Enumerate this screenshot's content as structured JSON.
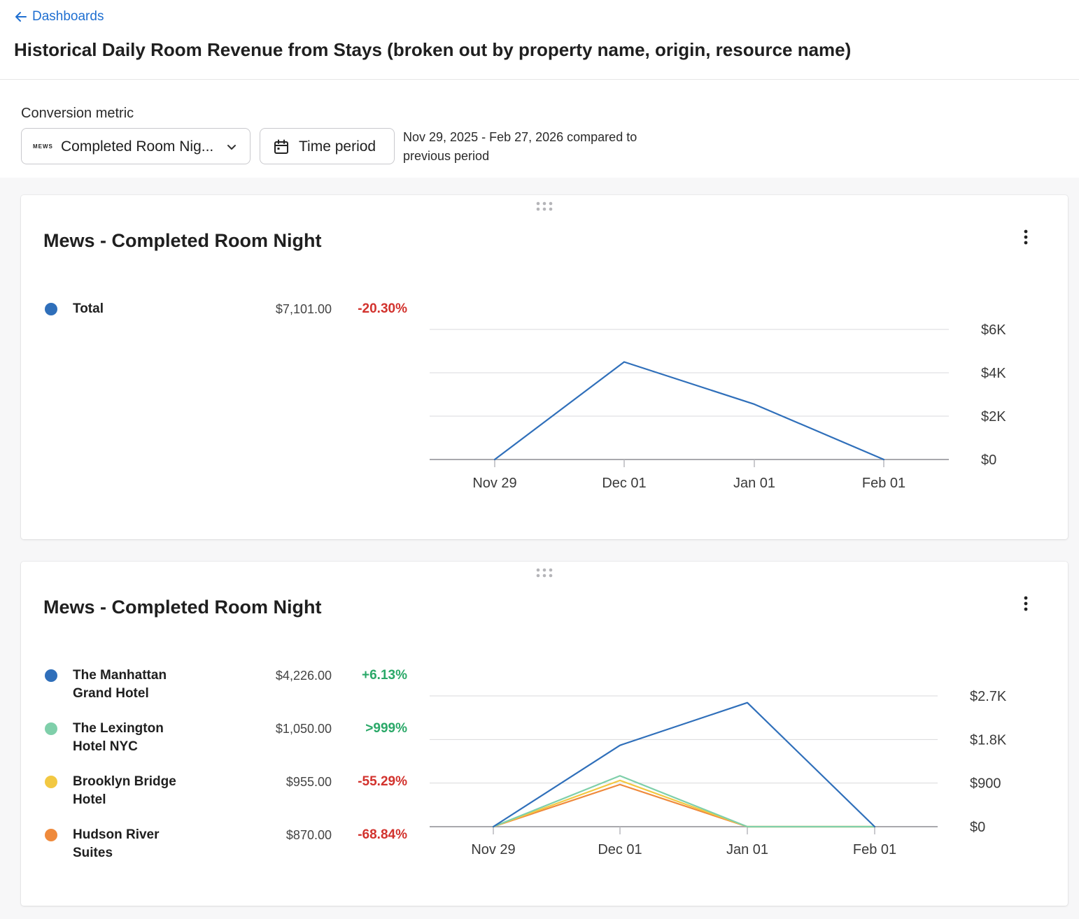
{
  "header": {
    "back_label": "Dashboards",
    "title": "Historical Daily Room Revenue from Stays (broken out by property name, origin, resource name)"
  },
  "controls": {
    "conversion_label": "Conversion metric",
    "metric_logo": "MEWS",
    "metric_value": "Completed Room Nig...",
    "time_button_label": "Time period",
    "period_text": "Nov 29, 2025 - Feb 27, 2026 compared to previous period"
  },
  "cards": [
    {
      "title": "Mews - Completed Room Night",
      "legend": [
        {
          "name": "Total",
          "value": "$7,101.00",
          "change": "-20.30%",
          "trend": "neg",
          "color": "#2f6fba"
        }
      ]
    },
    {
      "title": "Mews - Completed Room Night",
      "legend": [
        {
          "name": "The Manhattan Grand Hotel",
          "value": "$4,226.00",
          "change": "+6.13%",
          "trend": "pos",
          "color": "#2f6fba"
        },
        {
          "name": "The Lexington Hotel NYC",
          "value": "$1,050.00",
          "change": ">999%",
          "trend": "pos",
          "color": "#7fcfaa"
        },
        {
          "name": "Brooklyn Bridge Hotel",
          "value": "$955.00",
          "change": "-55.29%",
          "trend": "neg",
          "color": "#f2c842"
        },
        {
          "name": "Hudson River Suites",
          "value": "$870.00",
          "change": "-68.84%",
          "trend": "neg",
          "color": "#ef8a3c"
        }
      ]
    }
  ],
  "chart_data": [
    {
      "type": "line",
      "x": [
        "Nov 29",
        "Dec 01",
        "Jan 01",
        "Feb 01"
      ],
      "yticks": [
        "$0",
        "$2K",
        "$4K",
        "$6K"
      ],
      "ylim": [
        0,
        6000
      ],
      "grid": true,
      "series": [
        {
          "name": "Total",
          "color": "#2f6fba",
          "values": [
            0,
            4500,
            2550,
            0
          ]
        }
      ]
    },
    {
      "type": "line",
      "x": [
        "Nov 29",
        "Dec 01",
        "Jan 01",
        "Feb 01"
      ],
      "yticks": [
        "$0",
        "$900",
        "$1.8K",
        "$2.7K"
      ],
      "ylim": [
        0,
        2700
      ],
      "grid": true,
      "series": [
        {
          "name": "The Manhattan Grand Hotel",
          "color": "#2f6fba",
          "values": [
            0,
            1680,
            2560,
            0
          ]
        },
        {
          "name": "The Lexington Hotel NYC",
          "color": "#7fcfaa",
          "values": [
            0,
            1050,
            0,
            0
          ]
        },
        {
          "name": "Brooklyn Bridge Hotel",
          "color": "#f2c842",
          "values": [
            0,
            955,
            0,
            0
          ]
        },
        {
          "name": "Hudson River Suites",
          "color": "#ef8a3c",
          "values": [
            0,
            870,
            0,
            0
          ]
        }
      ]
    }
  ]
}
